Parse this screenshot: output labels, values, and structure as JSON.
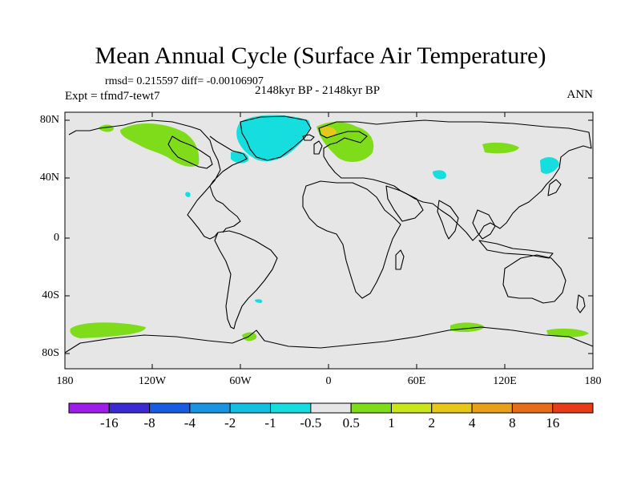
{
  "title": "Mean Annual Cycle (Surface Air Temperature)",
  "stats": "rmsd= 0.215597 diff= -0.00106907",
  "experiment": "Expt = tfmd7-tewt7",
  "period": "2148kyr BP - 2148kyr BP",
  "season": "ANN",
  "map": {
    "land_fill": "#e6e6e6",
    "coast_color": "#000000",
    "lat_labels": [
      "80N",
      "40N",
      "0",
      "40S",
      "80S"
    ],
    "lon_labels": [
      "180",
      "120W",
      "60W",
      "0",
      "60E",
      "120E",
      "180"
    ]
  },
  "colorbar": {
    "colors": [
      "#9b1fe6",
      "#3a2ad2",
      "#1a5ce0",
      "#1a94e0",
      "#16bfe0",
      "#16dede",
      "#e6e6e6",
      "#7fdc1a",
      "#c8e61a",
      "#e6c81a",
      "#e6a01a",
      "#e66e1a",
      "#e63c1a"
    ],
    "labels": [
      "-16",
      "-8",
      "-4",
      "-2",
      "-1",
      "-0.5",
      "0.5",
      "1",
      "2",
      "4",
      "8",
      "16"
    ]
  }
}
